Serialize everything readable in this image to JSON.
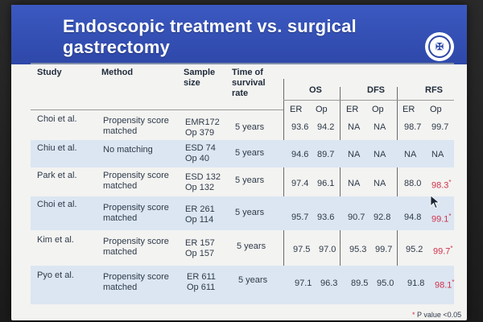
{
  "slide": {
    "title": "Endoscopic treatment vs. surgical gastrectomy",
    "logo_text": "✠"
  },
  "table": {
    "headers": {
      "study": "Study",
      "method": "Method",
      "sample_size": "Sample size",
      "time": "Time of survival rate",
      "os": "OS",
      "dfs": "DFS",
      "rfs": "RFS"
    },
    "subheaders": {
      "er": "ER",
      "op": "Op"
    },
    "rows": [
      {
        "study": "Choi et al.",
        "method": "Propensity score matched",
        "sample": "EMR172 Op 379",
        "time": "5 years",
        "os_er": "93.6",
        "os_op": "94.2",
        "dfs_er": "NA",
        "dfs_op": "NA",
        "rfs_er": "98.7",
        "rfs_op": "99.7"
      },
      {
        "study": "Chiu et al.",
        "method": "No matching",
        "sample": "ESD 74 Op 40",
        "time": "5 years",
        "os_er": "94.6",
        "os_op": "89.7",
        "dfs_er": "NA",
        "dfs_op": "NA",
        "rfs_er": "NA",
        "rfs_op": "NA"
      },
      {
        "study": "Park et al.",
        "method": "Propensity score matched",
        "sample": "ESD 132 Op 132",
        "time": "5 years",
        "os_er": "97.4",
        "os_op": "96.1",
        "dfs_er": "NA",
        "dfs_op": "NA",
        "rfs_er": "88.0",
        "rfs_op": "98.3"
      },
      {
        "study": "Choi et al.",
        "method": "Propensity score matched",
        "sample": "ER 261 Op 114",
        "time": "5 years",
        "os_er": "95.7",
        "os_op": "93.6",
        "dfs_er": "90.7",
        "dfs_op": "92.8",
        "rfs_er": "94.8",
        "rfs_op": "99.1"
      },
      {
        "study": "Kim et al.",
        "method": "Propensity score matched",
        "sample": "ER 157 Op 157",
        "time": "5 years",
        "os_er": "97.5",
        "os_op": "97.0",
        "dfs_er": "95.3",
        "dfs_op": "99.7",
        "rfs_er": "95.2",
        "rfs_op": "99.7"
      },
      {
        "study": "Pyo et al.",
        "method": "Propensity score matched",
        "sample": "ER 611 Op 611",
        "time": "5 years",
        "os_er": "97.1",
        "os_op": "96.3",
        "dfs_er": "89.5",
        "dfs_op": "95.0",
        "rfs_er": "91.8",
        "rfs_op": "98.1"
      }
    ]
  },
  "footnote": {
    "star": "*",
    "text": " P value <0.05"
  },
  "colors": {
    "banner": "#2e48a9",
    "alt_row": "#dbe6f2",
    "significant": "#d2304a"
  },
  "icons": {
    "cursor": "mouse-pointer-icon",
    "logo": "university-seal-icon"
  }
}
